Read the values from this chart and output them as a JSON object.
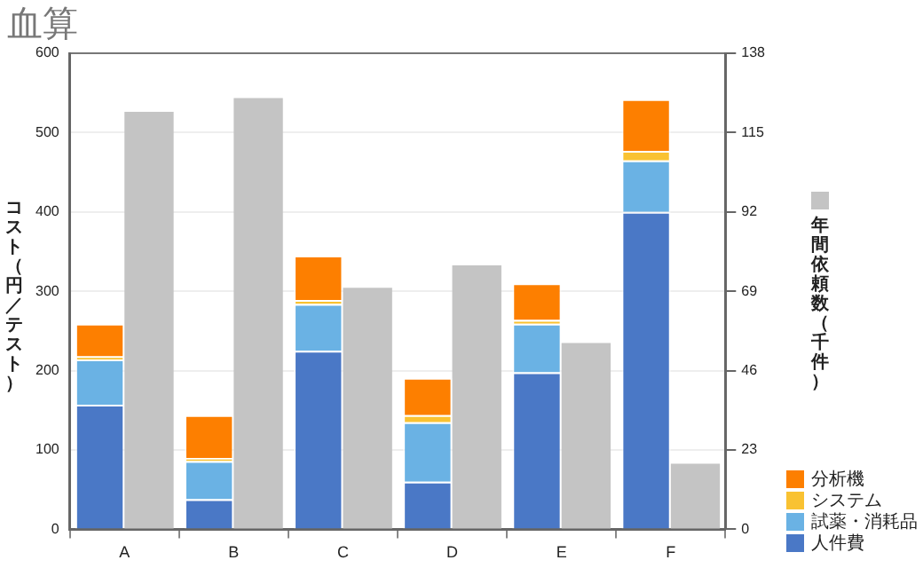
{
  "chart_data": {
    "type": "bar",
    "title": "血算",
    "ylabel": "コスト（円／テスト）",
    "y2label": "年間依頼数（千件）",
    "categories": [
      "A",
      "B",
      "C",
      "D",
      "E",
      "F"
    ],
    "stacked": true,
    "series": [
      {
        "name": "人件費",
        "color": "#4a78c6",
        "values": [
          157,
          38,
          225,
          60,
          198,
          400
        ]
      },
      {
        "name": "試薬・消耗品",
        "color": "#6ab2e4",
        "values": [
          57,
          48,
          59,
          75,
          61,
          65
        ]
      },
      {
        "name": "システム",
        "color": "#f9c232",
        "values": [
          4,
          4,
          5,
          9,
          5,
          12
        ]
      },
      {
        "name": "分析機",
        "color": "#fd7f00",
        "values": [
          41,
          54,
          56,
          47,
          46,
          65
        ]
      },
      {
        "color": "#c4c4c4",
        "axis": "y2",
        "values": [
          121,
          125,
          70,
          76.5,
          54,
          19
        ]
      }
    ],
    "ylim": [
      0,
      600
    ],
    "yticks": [
      0,
      100,
      200,
      300,
      400,
      500,
      600
    ],
    "y2lim": [
      0,
      138
    ],
    "y2ticks": [
      0,
      23,
      46,
      69,
      92,
      115,
      138
    ],
    "grid": "y",
    "legend": "bottom right"
  }
}
